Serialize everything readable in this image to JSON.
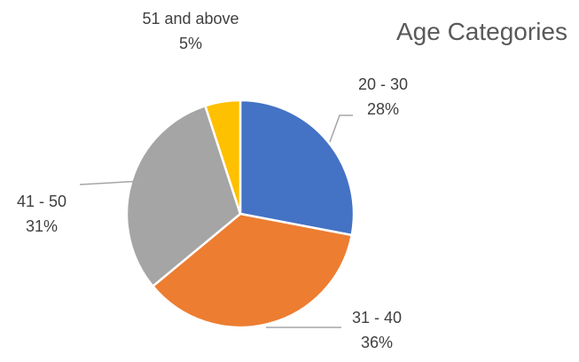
{
  "chart_data": {
    "type": "pie",
    "title": "Age Categories",
    "categories": [
      "20 - 30",
      "31 - 40",
      "41 - 50",
      "51 and above"
    ],
    "values": [
      28,
      36,
      31,
      5
    ],
    "value_labels": [
      "28%",
      "36%",
      "31%",
      "5%"
    ],
    "colors": [
      "#4472C4",
      "#ED7D31",
      "#A5A5A5",
      "#FFC000"
    ],
    "start_angle": "12 o'clock",
    "direction": "clockwise",
    "legend": "none"
  }
}
